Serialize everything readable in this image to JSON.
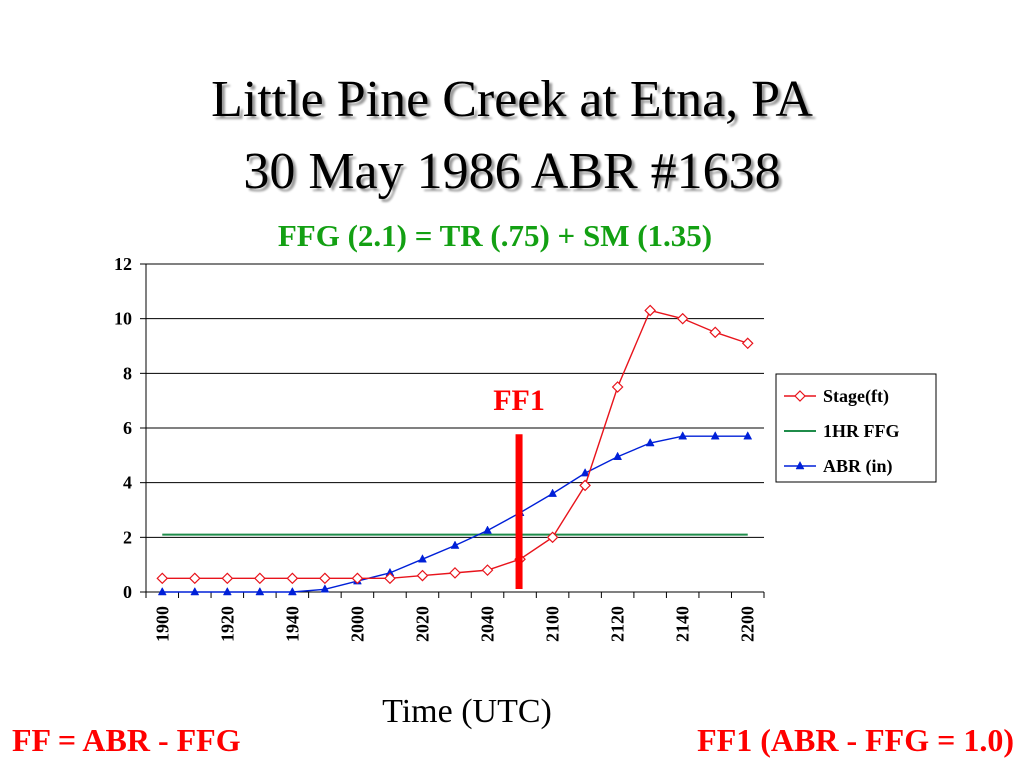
{
  "title_line1": "Little Pine Creek at Etna, PA",
  "title_line2": "30 May 1986 ABR #1638",
  "subtitle": "FFG (2.1) = TR (.75) + SM (1.35)",
  "bottom_left_note": "FF = ABR - FFG",
  "bottom_right_note": "FF1 (ABR - FFG = 1.0)",
  "colors": {
    "stage": "#e8141c",
    "ffg": "#1f8c4a",
    "abr": "#0020d8",
    "marker": "#ff0000",
    "subtitle": "#13a013"
  },
  "chart_data": {
    "type": "line",
    "xlabel": "Time (UTC)",
    "ylabel": "",
    "x": [
      "1900",
      "1910",
      "1920",
      "1930",
      "1940",
      "1950",
      "2000",
      "2010",
      "2020",
      "2030",
      "2040",
      "2050",
      "2100",
      "2110",
      "2120",
      "2130",
      "2140",
      "2150",
      "2200"
    ],
    "x_tick_labels": [
      "1900",
      "1920",
      "1940",
      "2000",
      "2020",
      "2040",
      "2100",
      "2120",
      "2140",
      "2200"
    ],
    "ylim": [
      0,
      12
    ],
    "y_ticks": [
      "0",
      "2",
      "4",
      "6",
      "8",
      "10",
      "12"
    ],
    "grid": "horizontal",
    "legend_position": "right",
    "series": [
      {
        "name": "Stage(ft)",
        "marker": "diamond-open",
        "values": [
          0.5,
          0.5,
          0.5,
          0.5,
          0.5,
          0.5,
          0.5,
          0.5,
          0.6,
          0.7,
          0.8,
          1.2,
          2.0,
          3.9,
          7.5,
          10.3,
          10.0,
          9.5,
          9.1
        ]
      },
      {
        "name": "1HR FFG",
        "marker": "none",
        "values": [
          2.1,
          2.1,
          2.1,
          2.1,
          2.1,
          2.1,
          2.1,
          2.1,
          2.1,
          2.1,
          2.1,
          2.1,
          2.1,
          2.1,
          2.1,
          2.1,
          2.1,
          2.1,
          2.1
        ]
      },
      {
        "name": "ABR (in)",
        "marker": "triangle-filled",
        "values": [
          0,
          0,
          0,
          0,
          0,
          0.1,
          0.4,
          0.7,
          1.2,
          1.7,
          2.25,
          2.9,
          3.6,
          4.35,
          4.95,
          5.45,
          5.7,
          5.7,
          5.7
        ]
      }
    ],
    "annotation": {
      "label": "FF1",
      "x_index": 11.0,
      "y_from": 0,
      "y_to": 5.7
    }
  }
}
